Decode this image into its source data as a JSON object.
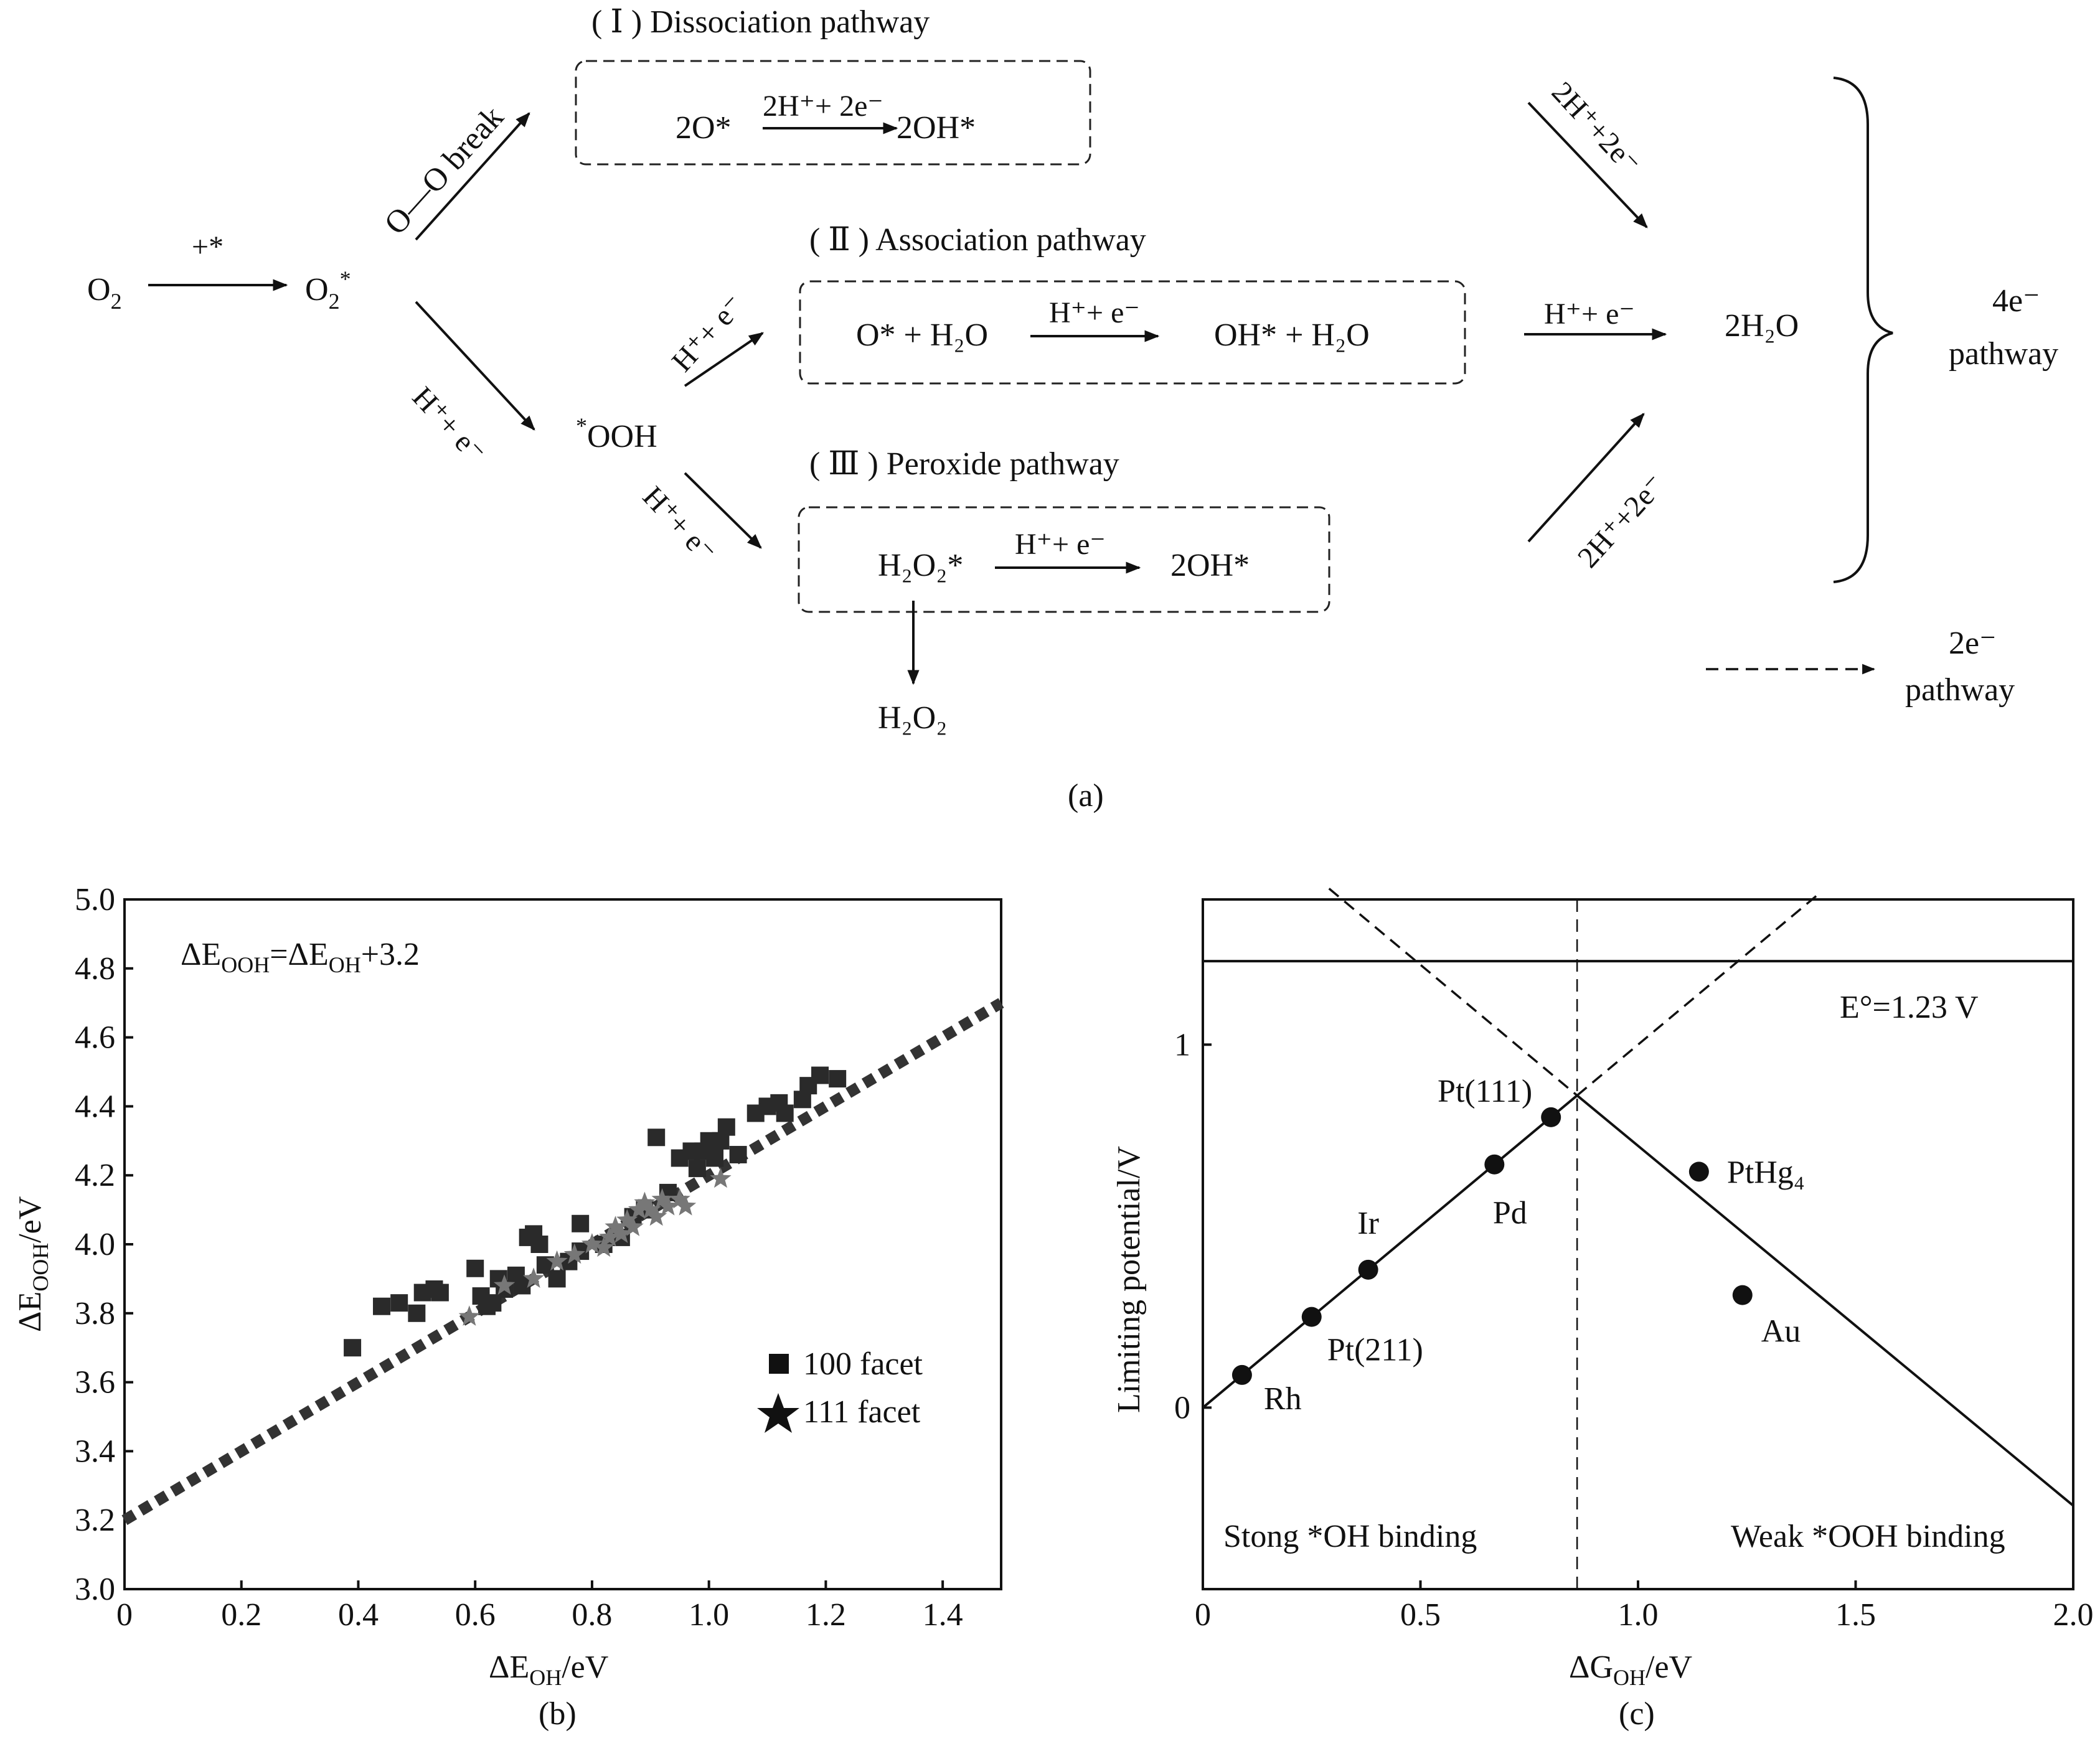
{
  "panel_a": {
    "o2": "O",
    "o2_sub": "2",
    "plus_star": "+*",
    "o2_star": "O",
    "o2_star_sub": "2",
    "o2_star_sup": "*",
    "oo_break": "O—O break",
    "h_e": "H⁺+ e⁻",
    "ooh_star": "*",
    "ooh": "OOH",
    "pathway1_title": "( Ⅰ ) Dissociation pathway",
    "pathway1_left": "2O*",
    "pathway1_arrow": "2H⁺+ 2e⁻",
    "pathway1_right": "2OH*",
    "pathway2_title": "( Ⅱ ) Association pathway",
    "pathway2_left": "O* + H₂O",
    "pathway2_arrow": "H⁺+ e⁻",
    "pathway2_right": "OH* + H₂O",
    "pathway3_title": "( Ⅲ ) Peroxide pathway",
    "pathway3_left": "H₂O₂*",
    "pathway3_arrow": "H⁺+ e⁻",
    "pathway3_right": "2OH*",
    "h2o2": "H₂O₂",
    "to_water_top": "2H⁺+2e⁻",
    "to_water_mid": "H⁺+ e⁻",
    "to_water_bot": "2H⁺+2e⁻",
    "water": "2H₂O",
    "four_e": "4e⁻",
    "four_e_pathway": "pathway",
    "two_e": "2e⁻",
    "two_e_pathway": "pathway",
    "caption": "(a)"
  },
  "chart_data": [
    {
      "type": "scatter",
      "caption": "(b)",
      "equation": "ΔE_OOH=ΔE_OH+3.2",
      "xlabel": "ΔE_OH/eV",
      "ylabel": "ΔE_OOH/eV",
      "xlim": [
        0,
        1.5
      ],
      "ylim": [
        3.0,
        5.0
      ],
      "xticks": [
        "0",
        "0.2",
        "0.4",
        "0.6",
        "0.8",
        "1.0",
        "1.2",
        "1.4"
      ],
      "yticks": [
        "3.0",
        "3.2",
        "3.4",
        "3.6",
        "3.8",
        "4.0",
        "4.2",
        "4.4",
        "4.6",
        "4.8",
        "5.0"
      ],
      "fit_line": {
        "slope": 1.0,
        "intercept": 3.2,
        "style": "dotted"
      },
      "legend": [
        "100 facet",
        "111 facet"
      ],
      "series": [
        {
          "name": "100 facet",
          "marker": "square",
          "points": [
            [
              0.39,
              3.7
            ],
            [
              0.44,
              3.82
            ],
            [
              0.47,
              3.83
            ],
            [
              0.5,
              3.8
            ],
            [
              0.51,
              3.86
            ],
            [
              0.53,
              3.87
            ],
            [
              0.54,
              3.86
            ],
            [
              0.6,
              3.93
            ],
            [
              0.61,
              3.85
            ],
            [
              0.62,
              3.82
            ],
            [
              0.63,
              3.83
            ],
            [
              0.64,
              3.9
            ],
            [
              0.65,
              3.87
            ],
            [
              0.67,
              3.91
            ],
            [
              0.68,
              3.88
            ],
            [
              0.69,
              4.02
            ],
            [
              0.7,
              4.03
            ],
            [
              0.71,
              4.0
            ],
            [
              0.72,
              3.94
            ],
            [
              0.74,
              3.9
            ],
            [
              0.76,
              3.95
            ],
            [
              0.78,
              3.98
            ],
            [
              0.78,
              4.06
            ],
            [
              0.82,
              4.0
            ],
            [
              0.85,
              4.02
            ],
            [
              0.87,
              4.08
            ],
            [
              0.89,
              4.1
            ],
            [
              0.91,
              4.31
            ],
            [
              0.93,
              4.15
            ],
            [
              0.95,
              4.25
            ],
            [
              0.97,
              4.27
            ],
            [
              0.98,
              4.22
            ],
            [
              0.99,
              4.27
            ],
            [
              1.0,
              4.3
            ],
            [
              1.01,
              4.25
            ],
            [
              1.02,
              4.3
            ],
            [
              1.03,
              4.34
            ],
            [
              1.05,
              4.26
            ],
            [
              1.08,
              4.38
            ],
            [
              1.1,
              4.4
            ],
            [
              1.12,
              4.41
            ],
            [
              1.13,
              4.38
            ],
            [
              1.16,
              4.42
            ],
            [
              1.17,
              4.46
            ],
            [
              1.19,
              4.49
            ],
            [
              1.22,
              4.48
            ]
          ]
        },
        {
          "name": "111 facet",
          "marker": "star",
          "points": [
            [
              0.59,
              3.79
            ],
            [
              0.65,
              3.88
            ],
            [
              0.7,
              3.9
            ],
            [
              0.74,
              3.95
            ],
            [
              0.77,
              3.97
            ],
            [
              0.8,
              4.0
            ],
            [
              0.82,
              3.99
            ],
            [
              0.83,
              4.02
            ],
            [
              0.84,
              4.05
            ],
            [
              0.85,
              4.03
            ],
            [
              0.86,
              4.07
            ],
            [
              0.87,
              4.05
            ],
            [
              0.88,
              4.1
            ],
            [
              0.89,
              4.12
            ],
            [
              0.9,
              4.1
            ],
            [
              0.91,
              4.08
            ],
            [
              0.92,
              4.13
            ],
            [
              0.93,
              4.11
            ],
            [
              0.95,
              4.13
            ],
            [
              0.96,
              4.11
            ],
            [
              1.02,
              4.19
            ]
          ]
        }
      ]
    },
    {
      "type": "line",
      "caption": "(c)",
      "xlabel": "ΔG_OH/eV",
      "ylabel": "Limiting potential/V",
      "xlim": [
        0,
        2.0
      ],
      "ylim": [
        -0.5,
        1.4
      ],
      "xticks": [
        "0",
        "0.5",
        "1.0",
        "1.5",
        "2.0"
      ],
      "yticks": [
        "0",
        "1"
      ],
      "e0_label": "E°=1.23 V",
      "e0": 1.23,
      "vertical_line_x": 0.86,
      "region_left": "Stong *OH binding",
      "region_right": "Weak *OOH binding",
      "lines": [
        {
          "name": "strong OH branch",
          "from": [
            0,
            0.0
          ],
          "to": [
            0.86,
            0.86
          ],
          "style": "solid"
        },
        {
          "name": "weak OOH branch",
          "from": [
            0.86,
            0.86
          ],
          "to": [
            2.0,
            -0.27
          ],
          "style": "solid"
        },
        {
          "name": "extension left",
          "from": [
            0.86,
            0.86
          ],
          "to": [
            1.42,
            1.42
          ],
          "style": "dashed"
        },
        {
          "name": "extension right",
          "from": [
            0.29,
            1.43
          ],
          "to": [
            0.86,
            0.86
          ],
          "style": "dashed"
        }
      ],
      "points": [
        {
          "label": "Rh",
          "x": 0.09,
          "y": 0.09
        },
        {
          "label": "Pt(211)",
          "x": 0.25,
          "y": 0.25
        },
        {
          "label": "Ir",
          "x": 0.38,
          "y": 0.38
        },
        {
          "label": "Pd",
          "x": 0.67,
          "y": 0.67
        },
        {
          "label": "Pt(111)",
          "x": 0.8,
          "y": 0.8
        },
        {
          "label": "PtHg₄",
          "x": 1.14,
          "y": 0.65
        },
        {
          "label": "Au",
          "x": 1.24,
          "y": 0.31
        }
      ]
    }
  ]
}
